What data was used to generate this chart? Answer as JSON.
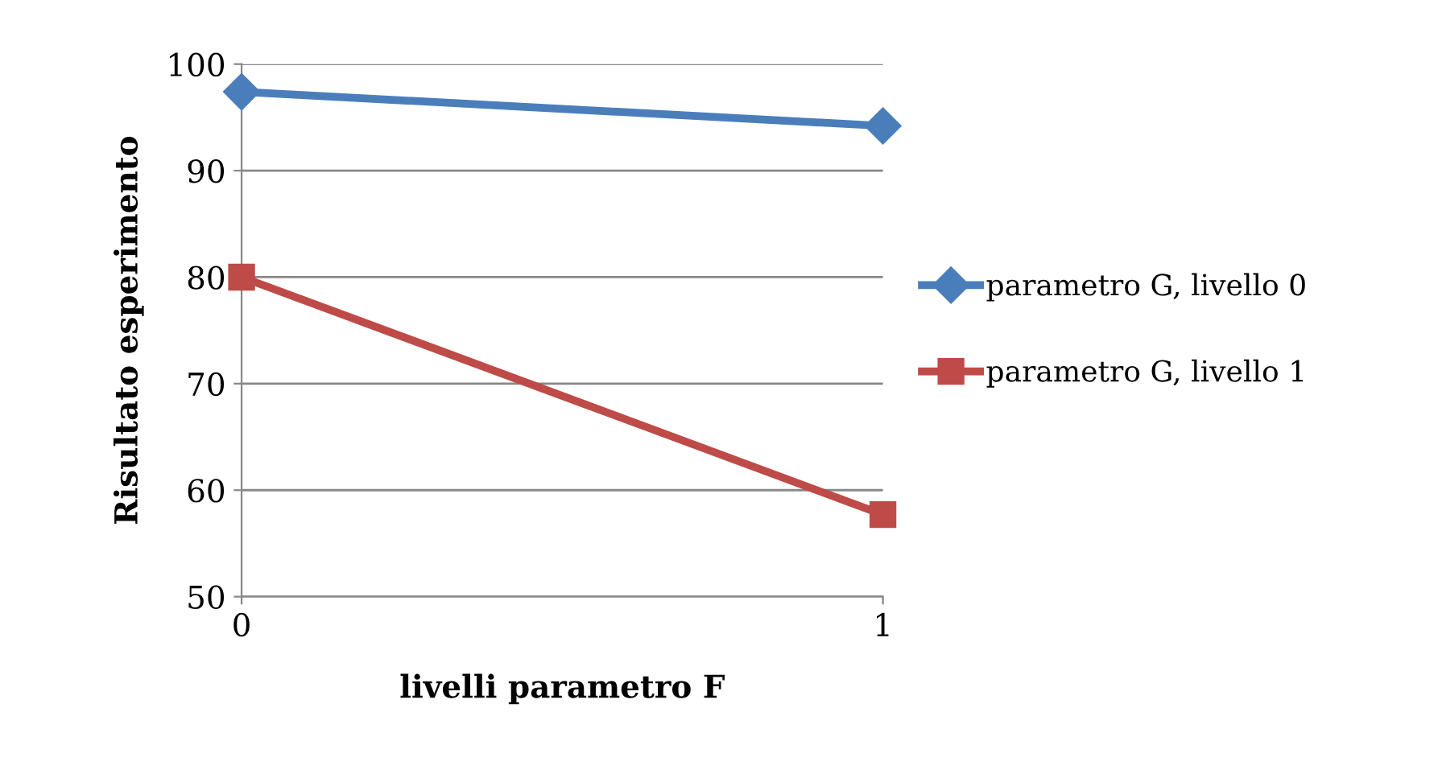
{
  "chart_data": {
    "type": "line",
    "xlabel": "livelli parametro F",
    "ylabel": "Risultato esperimento",
    "x": [
      0,
      1
    ],
    "series": [
      {
        "name": "parametro G, livello 0",
        "color": "#4a7ebb",
        "values": [
          97.4,
          94.2
        ],
        "marker": "diamond"
      },
      {
        "name": "parametro G, livello 1",
        "color": "#be4b48",
        "values": [
          80,
          57.7
        ],
        "marker": "square"
      }
    ],
    "xlim": [
      0,
      1
    ],
    "xticks": [
      0,
      1
    ],
    "ylim": [
      50,
      100
    ],
    "yticks": [
      50,
      60,
      70,
      80,
      90,
      100
    ],
    "grid": "y",
    "legend": "right",
    "line_style": "solid"
  }
}
